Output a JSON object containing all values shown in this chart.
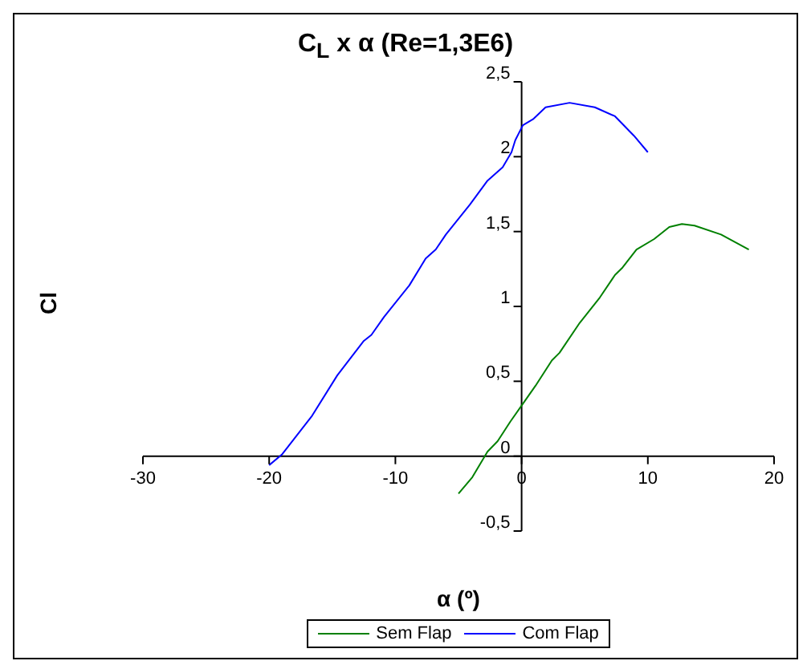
{
  "chart_data": {
    "type": "line",
    "title": "C$_{L}$ x α (Re=1,3E6)",
    "xlabel": "α (º)",
    "ylabel": "Cl",
    "xlim": [
      -30,
      20
    ],
    "xticks": [
      -30,
      -20,
      -10,
      0,
      10,
      20
    ],
    "ylim": [
      -0.5,
      2.5
    ],
    "yticks": [
      {
        "value": -0.5,
        "label": "-0,5"
      },
      0,
      {
        "value": 0.5,
        "label": "0,5"
      },
      1,
      {
        "value": 1.5,
        "label": "1,5"
      },
      2,
      {
        "value": 2.5,
        "label": "2,5"
      }
    ],
    "grid": false,
    "legend": "bottom",
    "marker": "none",
    "line_style": "solid",
    "series": [
      {
        "name": "Sem Flap",
        "color": "#008000",
        "x": [
          -5,
          -3.9,
          -2.7,
          -1.9,
          -0.9,
          0.1,
          1.1,
          2.4,
          3.0,
          4.6,
          6.2,
          7.4,
          8.0,
          9.1,
          10.5,
          11.7,
          12.7,
          13.7,
          15.8,
          18
        ],
        "values": [
          -0.25,
          -0.14,
          0.03,
          0.1,
          0.23,
          0.35,
          0.47,
          0.64,
          0.69,
          0.89,
          1.06,
          1.21,
          1.26,
          1.38,
          1.45,
          1.53,
          1.55,
          1.54,
          1.48,
          1.38
        ]
      },
      {
        "name": "Com Flap",
        "color": "#0000ff",
        "x": [
          -20,
          -19,
          -16.6,
          -14.6,
          -12.5,
          -11.9,
          -10.9,
          -8.9,
          -7.6,
          -6.8,
          -6.0,
          -4.1,
          -2.7,
          -1.5,
          -0.8,
          -0.5,
          0.1,
          0.9,
          1.9,
          3.8,
          5.8,
          7.4,
          8.9,
          10
        ],
        "values": [
          -0.06,
          0.01,
          0.27,
          0.54,
          0.77,
          0.81,
          0.93,
          1.14,
          1.32,
          1.38,
          1.48,
          1.68,
          1.84,
          1.93,
          2.03,
          2.11,
          2.21,
          2.25,
          2.33,
          2.36,
          2.33,
          2.27,
          2.14,
          2.03
        ]
      }
    ]
  }
}
